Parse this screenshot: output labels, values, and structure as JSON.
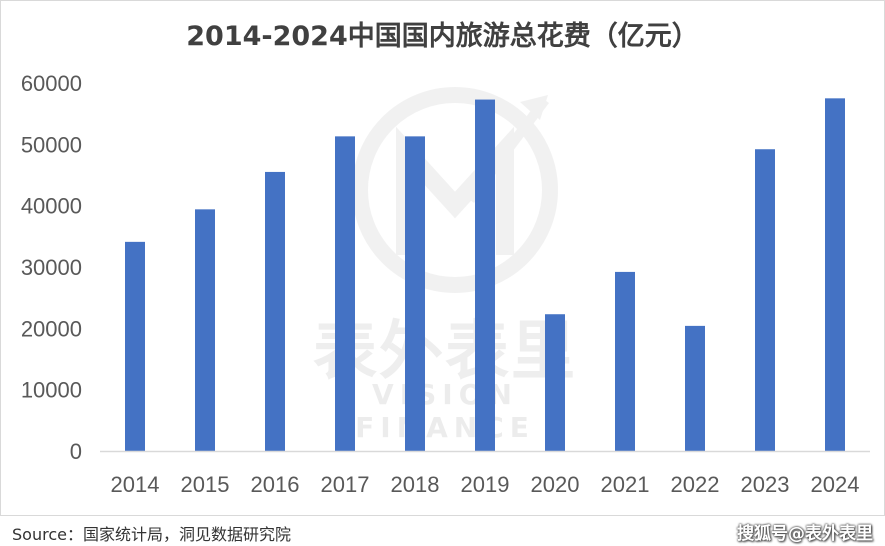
{
  "chart_data": {
    "type": "bar",
    "title": "2014-2024中国国内旅游总花费（亿元）",
    "categories": [
      "2014",
      "2015",
      "2016",
      "2017",
      "2018",
      "2019",
      "2020",
      "2021",
      "2022",
      "2023",
      "2024"
    ],
    "values": [
      34100,
      39400,
      45500,
      51300,
      51300,
      57300,
      22300,
      29200,
      20400,
      49200,
      57500
    ],
    "ylim": [
      0,
      60000
    ],
    "yticks": [
      0,
      10000,
      20000,
      30000,
      40000,
      50000,
      60000
    ],
    "xlabel": "",
    "ylabel": "",
    "grid": false,
    "legend": "none",
    "bar_color": "#4472C4"
  },
  "watermark": {
    "text": "表外表里",
    "subtext": "VISION FINANCE"
  },
  "source": "Source：国家统计局，洞见数据研究院",
  "credit": "搜狐号@表外表里"
}
